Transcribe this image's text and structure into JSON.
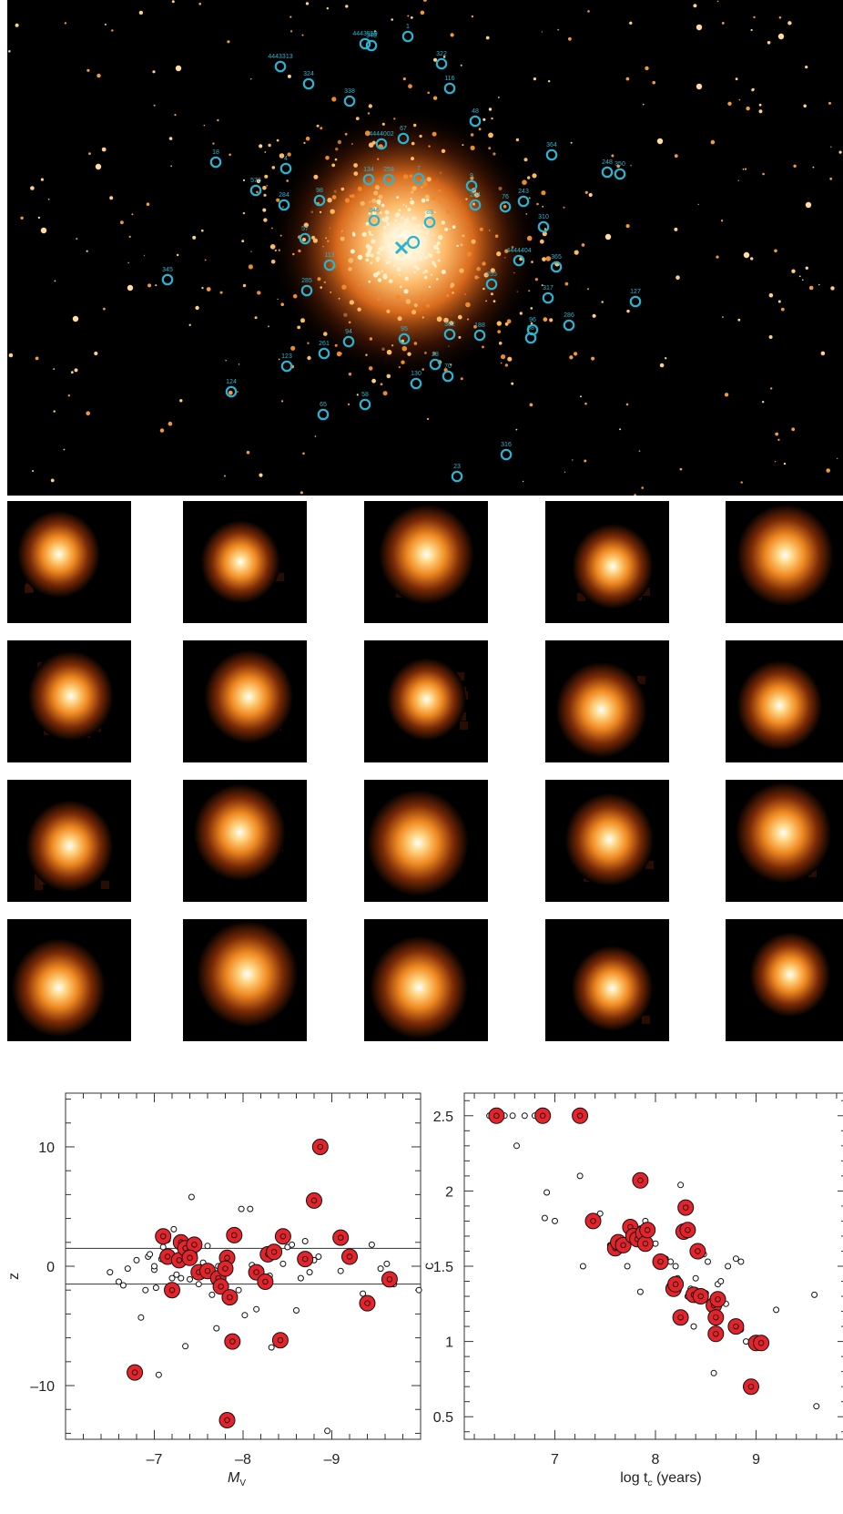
{
  "figure": {
    "field_markers": [
      {
        "label": "1",
        "x": 440,
        "y": 40
      },
      {
        "label": "4443559",
        "x": 393,
        "y": 48
      },
      {
        "label": "348",
        "x": 400,
        "y": 50
      },
      {
        "label": "4443313",
        "x": 300,
        "y": 73
      },
      {
        "label": "322",
        "x": 477,
        "y": 70
      },
      {
        "label": "324",
        "x": 331,
        "y": 92
      },
      {
        "label": "116",
        "x": 486,
        "y": 97
      },
      {
        "label": "338",
        "x": 376,
        "y": 111
      },
      {
        "label": "48",
        "x": 514,
        "y": 133
      },
      {
        "label": "4444002",
        "x": 411,
        "y": 158
      },
      {
        "label": "67",
        "x": 435,
        "y": 152
      },
      {
        "label": "364",
        "x": 598,
        "y": 170
      },
      {
        "label": "18",
        "x": 229,
        "y": 178
      },
      {
        "label": "4",
        "x": 306,
        "y": 185
      },
      {
        "label": "248",
        "x": 659,
        "y": 189
      },
      {
        "label": "350",
        "x": 673,
        "y": 191
      },
      {
        "label": "134",
        "x": 397,
        "y": 197
      },
      {
        "label": "258",
        "x": 419,
        "y": 197
      },
      {
        "label": "7",
        "x": 452,
        "y": 196
      },
      {
        "label": "9",
        "x": 510,
        "y": 204
      },
      {
        "label": "204",
        "x": 514,
        "y": 225
      },
      {
        "label": "576",
        "x": 273,
        "y": 209
      },
      {
        "label": "98",
        "x": 343,
        "y": 220
      },
      {
        "label": "284",
        "x": 304,
        "y": 225
      },
      {
        "label": "76",
        "x": 547,
        "y": 227
      },
      {
        "label": "243",
        "x": 567,
        "y": 221
      },
      {
        "label": "846",
        "x": 403,
        "y": 242
      },
      {
        "label": "83",
        "x": 464,
        "y": 244
      },
      {
        "label": "310",
        "x": 589,
        "y": 249
      },
      {
        "label": "57",
        "x": 327,
        "y": 262
      },
      {
        "label": "4444404",
        "x": 562,
        "y": 286
      },
      {
        "label": "113",
        "x": 354,
        "y": 291
      },
      {
        "label": "365",
        "x": 603,
        "y": 293
      },
      {
        "label": "345",
        "x": 176,
        "y": 307
      },
      {
        "label": "255",
        "x": 532,
        "y": 312
      },
      {
        "label": "285",
        "x": 329,
        "y": 319
      },
      {
        "label": "317",
        "x": 594,
        "y": 327
      },
      {
        "label": "127",
        "x": 690,
        "y": 331
      },
      {
        "label": "286",
        "x": 617,
        "y": 357
      },
      {
        "label": "302",
        "x": 486,
        "y": 367
      },
      {
        "label": "188",
        "x": 519,
        "y": 368
      },
      {
        "label": "96",
        "x": 577,
        "y": 362
      },
      {
        "label": "98",
        "x": 575,
        "y": 371
      },
      {
        "label": "261",
        "x": 348,
        "y": 388
      },
      {
        "label": "94",
        "x": 375,
        "y": 375
      },
      {
        "label": "95",
        "x": 436,
        "y": 372
      },
      {
        "label": "123",
        "x": 307,
        "y": 402
      },
      {
        "label": "28",
        "x": 470,
        "y": 400
      },
      {
        "label": "130",
        "x": 449,
        "y": 421
      },
      {
        "label": "70",
        "x": 484,
        "y": 413
      },
      {
        "label": "124",
        "x": 246,
        "y": 430
      },
      {
        "label": "58",
        "x": 393,
        "y": 444
      },
      {
        "label": "65",
        "x": 347,
        "y": 455
      },
      {
        "label": "316",
        "x": 548,
        "y": 499
      },
      {
        "label": "23",
        "x": 494,
        "y": 523
      }
    ],
    "left_panel": {
      "ylabel": "z",
      "xlabel": "M",
      "xlabel_sub": "V",
      "yticks": [
        "10",
        "0",
        "–10"
      ],
      "xticks": [
        "–7",
        "–8",
        "–9"
      ]
    },
    "right_panel": {
      "ylabel": "c",
      "xlabel": "log t",
      "xlabel_sub": "c",
      "xlabel_suffix": " (years)",
      "yticks": [
        "2.5",
        "2",
        "1.5",
        "1",
        "0.5"
      ],
      "xticks": [
        "7",
        "8",
        "9"
      ]
    }
  },
  "chart_data": [
    {
      "type": "scatter",
      "xlabel": "M_V",
      "ylabel": "z",
      "xlim": [
        -6,
        -10
      ],
      "ylim": [
        -14.5,
        14.5
      ],
      "reference_lines_y": [
        1.5,
        -1.5
      ],
      "series": [
        {
          "points": [
            [
              -6.78,
              -8.9
            ],
            [
              -7.1,
              2.5
            ],
            [
              -7.2,
              -2
            ],
            [
              -7.15,
              0.8
            ],
            [
              -7.3,
              2
            ],
            [
              -7.28,
              0.5
            ],
            [
              -7.35,
              1.5
            ],
            [
              -7.45,
              1.8
            ],
            [
              -7.4,
              0.7
            ],
            [
              -7.5,
              -0.5
            ],
            [
              -7.6,
              -0.4
            ],
            [
              -7.72,
              -1
            ],
            [
              -7.75,
              -1.7
            ],
            [
              -7.82,
              0.7
            ],
            [
              -7.8,
              -0.2
            ],
            [
              -7.85,
              -2.6
            ],
            [
              -7.88,
              -6.3
            ],
            [
              -7.9,
              2.6
            ],
            [
              -7.82,
              -12.9
            ],
            [
              -8.15,
              -0.5
            ],
            [
              -8.25,
              -1.3
            ],
            [
              -8.28,
              1
            ],
            [
              -8.35,
              1.2
            ],
            [
              -8.42,
              -6.2
            ],
            [
              -8.45,
              2.5
            ],
            [
              -8.7,
              0.6
            ],
            [
              -8.8,
              5.5
            ],
            [
              -8.87,
              10
            ],
            [
              -9.1,
              2.4
            ],
            [
              -9.2,
              0.8
            ],
            [
              -9.4,
              -3.1
            ],
            [
              -9.65,
              -1.1
            ]
          ]
        },
        {
          "points": [
            [
              -6.5,
              -0.5
            ],
            [
              -6.6,
              -1.3
            ],
            [
              -6.65,
              -1.6
            ],
            [
              -6.7,
              -0.2
            ],
            [
              -6.8,
              0.5
            ],
            [
              -6.85,
              -4.3
            ],
            [
              -6.9,
              -2
            ],
            [
              -6.93,
              0.8
            ],
            [
              -6.95,
              1
            ],
            [
              -7,
              -0.3
            ],
            [
              -7,
              0
            ],
            [
              -7.02,
              -1.8
            ],
            [
              -7.05,
              -9.1
            ],
            [
              -7.08,
              0.6
            ],
            [
              -7.1,
              1.6
            ],
            [
              -7.15,
              2.2
            ],
            [
              -7.2,
              -1
            ],
            [
              -7.22,
              3.1
            ],
            [
              -7.25,
              -0.7
            ],
            [
              -7.3,
              -1
            ],
            [
              -7.35,
              -6.7
            ],
            [
              -7.4,
              -1.1
            ],
            [
              -7.42,
              5.8
            ],
            [
              -7.45,
              1
            ],
            [
              -7.5,
              -1.5
            ],
            [
              -7.55,
              0.3
            ],
            [
              -7.6,
              1.7
            ],
            [
              -7.65,
              -2.4
            ],
            [
              -7.7,
              -5.2
            ],
            [
              -7.72,
              0
            ],
            [
              -7.78,
              0.3
            ],
            [
              -7.8,
              -0.5
            ],
            [
              -7.85,
              0.4
            ],
            [
              -7.9,
              -6.5
            ],
            [
              -7.95,
              -2
            ],
            [
              -7.98,
              4.8
            ],
            [
              -8.02,
              -4.1
            ],
            [
              -8.08,
              4.8
            ],
            [
              -8.1,
              0.1
            ],
            [
              -8.15,
              -3.6
            ],
            [
              -8.2,
              -0.3
            ],
            [
              -8.25,
              -0.9
            ],
            [
              -8.3,
              -0.8
            ],
            [
              -8.32,
              -6.8
            ],
            [
              -8.35,
              1
            ],
            [
              -8.38,
              1.3
            ],
            [
              -8.45,
              0.2
            ],
            [
              -8.5,
              1.6
            ],
            [
              -8.55,
              1.8
            ],
            [
              -8.6,
              -3.7
            ],
            [
              -8.65,
              -1
            ],
            [
              -8.7,
              2.1
            ],
            [
              -8.75,
              -0.5
            ],
            [
              -8.8,
              0.5
            ],
            [
              -8.85,
              0.8
            ],
            [
              -8.9,
              10
            ],
            [
              -8.95,
              -13.8
            ],
            [
              -9.1,
              -0.4
            ],
            [
              -9.2,
              0.6
            ],
            [
              -9.35,
              -2.3
            ],
            [
              -9.45,
              1.8
            ],
            [
              -9.55,
              -0.2
            ],
            [
              -9.62,
              0.2
            ],
            [
              -9.7,
              -1.5
            ],
            [
              -9.98,
              -2
            ]
          ]
        }
      ]
    },
    {
      "type": "scatter",
      "xlabel": "log t_c (years)",
      "ylabel": "c",
      "xlim": [
        6.1,
        9.9
      ],
      "ylim": [
        0.35,
        2.65
      ],
      "series": [
        {
          "points": [
            [
              6.42,
              2.5
            ],
            [
              6.88,
              2.5
            ],
            [
              7.25,
              2.5
            ],
            [
              7.38,
              1.8
            ],
            [
              7.6,
              1.62
            ],
            [
              7.63,
              1.66
            ],
            [
              7.68,
              1.64
            ],
            [
              7.75,
              1.76
            ],
            [
              7.78,
              1.7
            ],
            [
              7.82,
              1.68
            ],
            [
              7.85,
              2.07
            ],
            [
              7.88,
              1.72
            ],
            [
              7.9,
              1.65
            ],
            [
              7.92,
              1.74
            ],
            [
              8.05,
              1.53
            ],
            [
              8.18,
              1.35
            ],
            [
              8.2,
              1.38
            ],
            [
              8.25,
              1.16
            ],
            [
              8.28,
              1.73
            ],
            [
              8.3,
              1.89
            ],
            [
              8.32,
              1.74
            ],
            [
              8.38,
              1.31
            ],
            [
              8.42,
              1.6
            ],
            [
              8.45,
              1.3
            ],
            [
              8.58,
              1.24
            ],
            [
              8.6,
              1.16
            ],
            [
              8.6,
              1.05
            ],
            [
              8.62,
              1.28
            ],
            [
              8.8,
              1.1
            ],
            [
              8.95,
              0.7
            ],
            [
              9.0,
              0.99
            ],
            [
              9.05,
              0.99
            ]
          ]
        },
        {
          "points": [
            [
              6.35,
              2.5
            ],
            [
              6.5,
              2.5
            ],
            [
              6.58,
              2.5
            ],
            [
              6.62,
              2.3
            ],
            [
              6.7,
              2.5
            ],
            [
              6.8,
              2.5
            ],
            [
              6.9,
              1.82
            ],
            [
              6.92,
              1.99
            ],
            [
              7,
              1.8
            ],
            [
              7.25,
              2.1
            ],
            [
              7.28,
              1.5
            ],
            [
              7.45,
              1.85
            ],
            [
              7.55,
              1.64
            ],
            [
              7.6,
              1.6
            ],
            [
              7.7,
              1.65
            ],
            [
              7.72,
              1.5
            ],
            [
              7.8,
              1.73
            ],
            [
              7.85,
              1.75
            ],
            [
              7.85,
              1.33
            ],
            [
              7.9,
              1.8
            ],
            [
              7.92,
              1.62
            ],
            [
              8,
              1.65
            ],
            [
              8.1,
              1.55
            ],
            [
              8.15,
              1.53
            ],
            [
              8.2,
              1.5
            ],
            [
              8.22,
              1.42
            ],
            [
              8.25,
              2.04
            ],
            [
              8.3,
              1.7
            ],
            [
              8.32,
              1.3
            ],
            [
              8.35,
              1.35
            ],
            [
              8.38,
              1.1
            ],
            [
              8.4,
              1.42
            ],
            [
              8.42,
              1.6
            ],
            [
              8.48,
              1.58
            ],
            [
              8.5,
              1.32
            ],
            [
              8.52,
              1.53
            ],
            [
              8.55,
              1.22
            ],
            [
              8.58,
              0.79
            ],
            [
              8.62,
              1.38
            ],
            [
              8.65,
              1.4
            ],
            [
              8.7,
              1.25
            ],
            [
              8.72,
              1.5
            ],
            [
              8.8,
              1.55
            ],
            [
              8.85,
              1.53
            ],
            [
              8.85,
              1.08
            ],
            [
              8.9,
              1.0
            ],
            [
              9.2,
              1.21
            ],
            [
              9.58,
              1.31
            ],
            [
              9.6,
              0.57
            ]
          ]
        }
      ]
    }
  ]
}
